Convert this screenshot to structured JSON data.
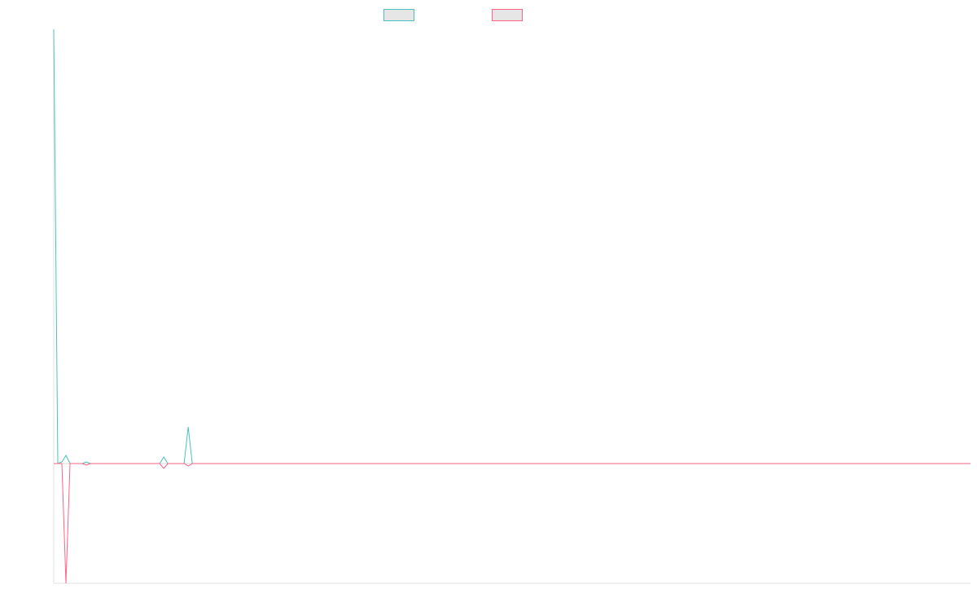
{
  "chart_data": {
    "type": "line",
    "title": "",
    "xlabel": "",
    "ylabel": "",
    "grid": false,
    "legend_position": "top-center",
    "x": [
      0,
      1,
      2,
      3,
      4,
      5,
      6,
      7,
      8,
      9,
      10,
      11,
      12,
      13,
      14,
      15,
      16,
      17,
      18,
      19,
      20,
      21,
      22,
      23,
      24,
      25,
      26,
      27,
      28,
      29,
      30,
      31,
      32,
      33,
      34,
      35,
      36,
      37,
      38,
      39,
      40,
      41,
      42,
      43,
      44,
      45,
      46,
      47,
      48,
      49,
      50,
      51,
      52,
      53,
      54,
      55,
      56,
      57,
      58,
      59,
      60,
      61,
      62,
      63,
      64,
      65,
      66,
      67,
      68,
      69,
      70,
      71,
      72,
      73,
      74,
      75,
      76,
      77,
      78,
      79,
      80,
      81,
      82,
      83,
      84,
      85,
      86,
      87,
      88,
      89,
      90,
      91,
      92,
      93,
      94,
      95,
      96,
      97,
      98,
      99,
      100,
      101,
      102,
      103,
      104,
      105,
      106,
      107,
      108,
      109,
      110,
      111,
      112,
      113,
      114,
      115,
      116,
      117,
      118,
      119,
      120,
      121,
      122,
      123,
      124,
      125,
      126,
      127,
      128,
      129,
      130,
      131,
      132,
      133,
      134,
      135,
      136,
      137,
      138,
      139,
      140,
      141,
      142,
      143,
      144,
      145,
      146,
      147,
      148,
      149,
      150,
      151,
      152,
      153,
      154,
      155,
      156,
      157,
      158,
      159,
      160,
      161,
      162,
      163,
      164,
      165,
      166,
      167,
      168,
      169,
      170,
      171,
      172,
      173,
      174,
      175,
      176,
      177,
      178,
      179,
      180,
      181,
      182,
      183,
      184,
      185,
      186,
      187,
      188,
      189,
      190,
      191,
      192,
      193,
      194,
      195,
      196,
      197,
      198,
      199,
      200,
      201,
      202,
      203,
      204,
      205,
      206,
      207,
      208,
      209,
      210,
      211,
      212,
      213,
      214,
      215,
      216,
      217,
      218,
      219,
      220,
      221,
      222,
      223,
      224,
      225
    ],
    "ylim": [
      -147,
      533
    ],
    "series": [
      {
        "color": "#4bc0c0",
        "values": [
          533,
          0,
          2,
          10,
          0,
          0,
          0,
          0,
          2,
          0,
          0,
          0,
          0,
          0,
          0,
          0,
          0,
          0,
          0,
          0,
          0,
          0,
          0,
          0,
          0,
          0,
          0,
          8,
          0,
          0,
          0,
          0,
          0,
          45,
          0,
          0,
          0,
          0,
          0,
          0,
          0,
          0,
          0,
          0,
          0,
          0,
          0,
          0,
          0,
          0,
          0,
          0,
          0,
          0,
          0,
          0,
          0,
          0,
          0,
          0,
          0,
          0,
          0,
          0,
          0,
          0,
          0,
          0,
          0,
          0,
          0,
          0,
          0,
          0,
          0,
          0,
          0,
          0,
          0,
          0,
          0,
          0,
          0,
          0,
          0,
          0,
          0,
          0,
          0,
          0,
          0,
          0,
          0,
          0,
          0,
          0,
          0,
          0,
          0,
          0,
          0,
          0,
          0,
          0,
          0,
          0,
          0,
          0,
          0,
          0,
          0,
          0,
          0,
          0,
          0,
          0,
          0,
          0,
          0,
          0,
          0,
          0,
          0,
          0,
          0,
          0,
          0,
          0,
          0,
          0,
          0,
          0,
          0,
          0,
          0,
          0,
          0,
          0,
          0,
          0,
          0,
          0,
          0,
          0,
          0,
          0,
          0,
          0,
          0,
          0,
          0,
          0,
          0,
          0,
          0,
          0,
          0,
          0,
          0,
          0,
          0,
          0,
          0,
          0,
          0,
          0,
          0,
          0,
          0,
          0,
          0,
          0,
          0,
          0,
          0,
          0,
          0,
          0,
          0,
          0,
          0,
          0,
          0,
          0,
          0,
          0,
          0,
          0,
          0,
          0,
          0,
          0,
          0,
          0,
          0,
          0,
          0,
          0,
          0,
          0,
          0,
          0,
          0,
          0,
          0,
          0,
          0,
          0,
          0,
          0,
          0,
          0,
          0,
          0,
          0,
          0,
          0,
          0,
          0,
          0,
          0,
          0,
          0,
          0,
          0,
          0
        ]
      },
      {
        "color": "#ff6384",
        "values": [
          0,
          0,
          0,
          -147,
          0,
          0,
          0,
          0,
          -2,
          0,
          0,
          0,
          0,
          0,
          0,
          0,
          0,
          0,
          0,
          0,
          0,
          0,
          0,
          0,
          0,
          0,
          0,
          -6,
          0,
          0,
          0,
          0,
          0,
          -3,
          0,
          0,
          0,
          0,
          0,
          0,
          0,
          0,
          0,
          0,
          0,
          0,
          0,
          0,
          0,
          0,
          0,
          0,
          0,
          0,
          0,
          0,
          0,
          0,
          0,
          0,
          0,
          0,
          0,
          0,
          0,
          0,
          0,
          0,
          0,
          0,
          0,
          0,
          0,
          0,
          0,
          0,
          0,
          0,
          0,
          0,
          0,
          0,
          0,
          0,
          0,
          0,
          0,
          0,
          0,
          0,
          0,
          0,
          0,
          0,
          0,
          0,
          0,
          0,
          0,
          0,
          0,
          0,
          0,
          0,
          0,
          0,
          0,
          0,
          0,
          0,
          0,
          0,
          0,
          0,
          0,
          0,
          0,
          0,
          0,
          0,
          0,
          0,
          0,
          0,
          0,
          0,
          0,
          0,
          0,
          0,
          0,
          0,
          0,
          0,
          0,
          0,
          0,
          0,
          0,
          0,
          0,
          0,
          0,
          0,
          0,
          0,
          0,
          0,
          0,
          0,
          0,
          0,
          0,
          0,
          0,
          0,
          0,
          0,
          0,
          0,
          0,
          0,
          0,
          0,
          0,
          0,
          0,
          0,
          0,
          0,
          0,
          0,
          0,
          0,
          0,
          0,
          0,
          0,
          0,
          0,
          0,
          0,
          0,
          0,
          0,
          0,
          0,
          0,
          0,
          0,
          0,
          0,
          0,
          0,
          0,
          0,
          0,
          0,
          0,
          0,
          0,
          0,
          0,
          0,
          0,
          0,
          0,
          0,
          0,
          0,
          0,
          0,
          0,
          0,
          0,
          0,
          0,
          0,
          0,
          0,
          0,
          0,
          0,
          0,
          0,
          0
        ]
      }
    ]
  }
}
